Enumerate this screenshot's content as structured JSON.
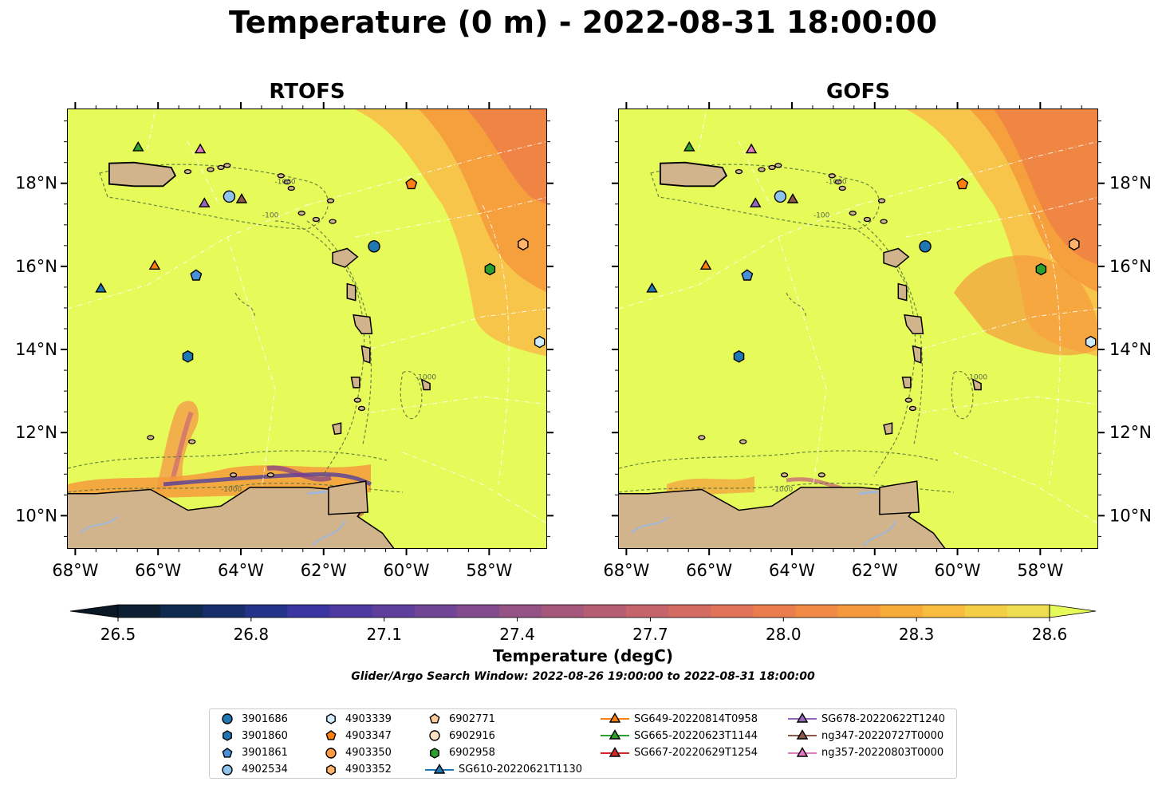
{
  "title": "Temperature (0 m) - 2022-08-31 18:00:00",
  "panels": [
    {
      "key": "rtofs",
      "title": "RTOFS"
    },
    {
      "key": "gofs",
      "title": "GOFS"
    }
  ],
  "axis": {
    "x_ticks": [
      "68°W",
      "66°W",
      "64°W",
      "62°W",
      "60°W",
      "58°W"
    ],
    "y_ticks": [
      "18°N",
      "16°N",
      "14°N",
      "12°N",
      "10°N"
    ],
    "lon_range": [
      -68.2,
      -56.6
    ],
    "lat_range": [
      9.2,
      19.8
    ]
  },
  "colorbar": {
    "ticks": [
      "26.5",
      "26.8",
      "27.1",
      "27.4",
      "27.7",
      "28.0",
      "28.3",
      "28.6"
    ],
    "label": "Temperature (degC)",
    "range": [
      26.5,
      28.6
    ],
    "extend": "both"
  },
  "search_window": "Glider/Argo Search Window: 2022-08-26 19:00:00 to 2022-08-31 18:00:00",
  "contour_labels": [
    "-1000",
    "-100"
  ],
  "chart_data": {
    "type": "heatmap",
    "variable": "Temperature (degC)",
    "depth": "0 m",
    "time": "2022-08-31 18:00:00",
    "markers": [
      {
        "name": "3901686",
        "shape": "circle",
        "color": "#1f77b4",
        "lon": -60.8,
        "lat": 16.5
      },
      {
        "name": "3901860",
        "shape": "hexagon",
        "color": "#1f77b4",
        "lon": -65.3,
        "lat": 13.85
      },
      {
        "name": "3901861",
        "shape": "pentagon",
        "color": "#4a90d9",
        "lon": -65.1,
        "lat": 15.8
      },
      {
        "name": "4902534",
        "shape": "circle",
        "color": "#8ec4ea",
        "lon": -64.3,
        "lat": 17.7
      },
      {
        "name": "4903339",
        "shape": "hexagon",
        "color": "#d0ecff",
        "lon": -56.8,
        "lat": 14.2
      },
      {
        "name": "4903347",
        "shape": "pentagon",
        "color": "#ff7f0e",
        "lon": -59.9,
        "lat": 18.0
      },
      {
        "name": "4903350",
        "shape": "circle",
        "color": "#ff9a42",
        "lon": null,
        "lat": null
      },
      {
        "name": "4903352",
        "shape": "hexagon",
        "color": "#ffb36b",
        "lon": -57.2,
        "lat": 16.55
      },
      {
        "name": "6902771",
        "shape": "pentagon",
        "color": "#ffcc99",
        "lon": null,
        "lat": null
      },
      {
        "name": "6902916",
        "shape": "circle",
        "color": "#ffe0c2",
        "lon": null,
        "lat": null
      },
      {
        "name": "6902958",
        "shape": "hexagon",
        "color": "#2ca02c",
        "lon": -58.0,
        "lat": 15.95
      },
      {
        "name": "SG610-20220621T1130",
        "shape": "triangle",
        "color": "#1f77b4",
        "lon": -67.4,
        "lat": 15.5
      },
      {
        "name": "SG649-20220814T0958",
        "shape": "triangle",
        "color": "#ff7f0e",
        "lon": -66.1,
        "lat": 16.05
      },
      {
        "name": "SG665-20220623T1144",
        "shape": "triangle",
        "color": "#2ca02c",
        "lon": -66.5,
        "lat": 18.9
      },
      {
        "name": "SG667-20220629T1254",
        "shape": "triangle",
        "color": "#d62728",
        "lon": null,
        "lat": null
      },
      {
        "name": "SG678-20220622T1240",
        "shape": "triangle",
        "color": "#9467bd",
        "lon": -64.9,
        "lat": 17.55
      },
      {
        "name": "ng347-20220727T0000",
        "shape": "triangle",
        "color": "#8c564b",
        "lon": -64.0,
        "lat": 17.65
      },
      {
        "name": "ng357-20220803T0000",
        "shape": "triangle",
        "color": "#e377c2",
        "lon": -65.0,
        "lat": 18.85
      }
    ]
  },
  "colors": {
    "base_warm": "#e6fa5a",
    "warm2": "#f8c24a",
    "warm3": "#f59a3c",
    "warm4": "#ef7f45",
    "land": "#d1b48c",
    "lake": "#9fb7d9"
  }
}
